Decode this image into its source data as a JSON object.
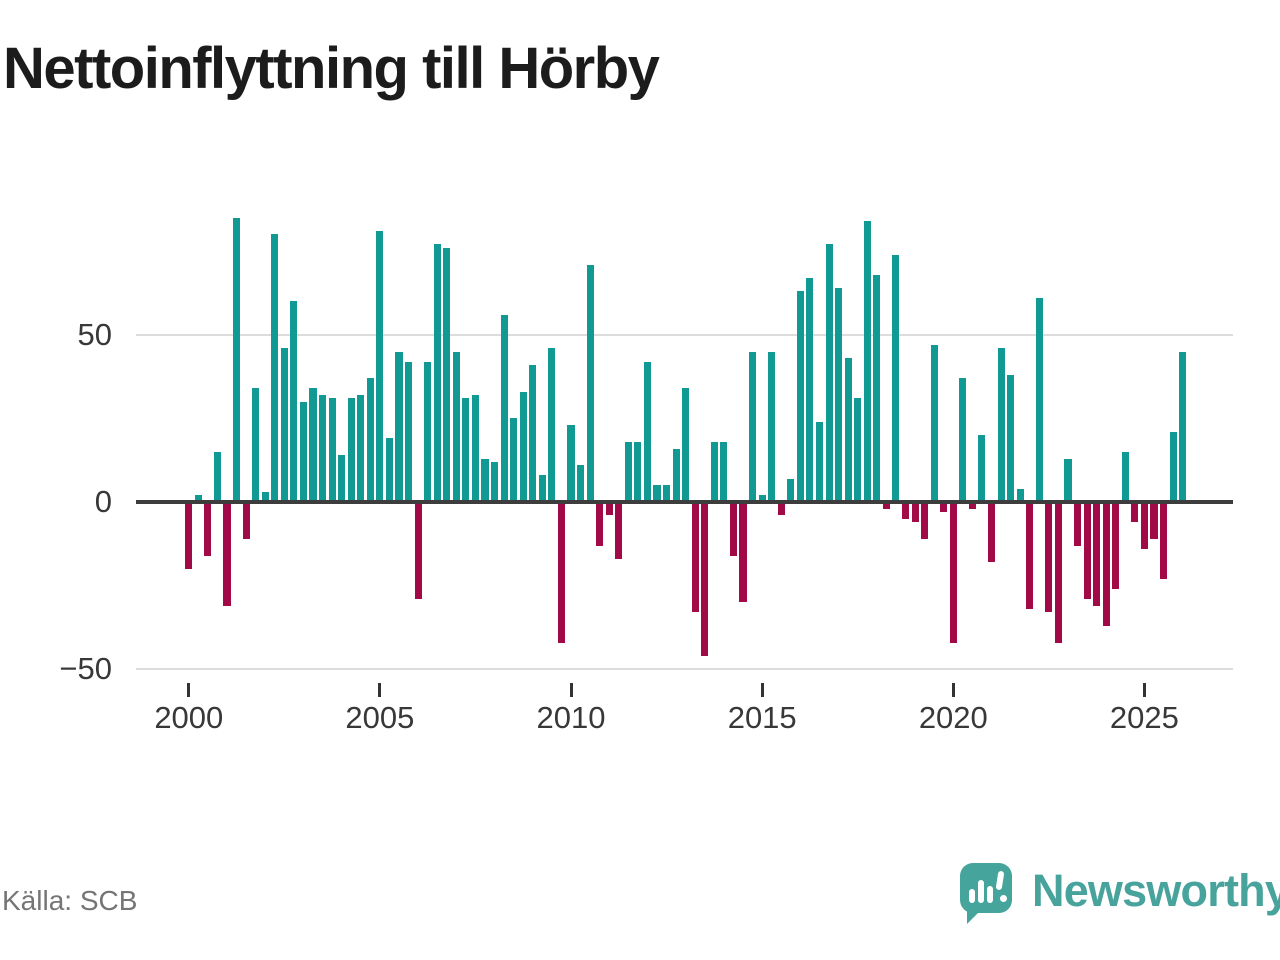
{
  "title": "Nettoinflyttning till Hörby",
  "source": "Källa: SCB",
  "branding": {
    "name": "Newsworthy",
    "logo_color": "#45a49c",
    "wordmark_color": "#47a39b"
  },
  "colors": {
    "positive_bar": "#119a93",
    "negative_bar": "#a10a47",
    "gridline": "#dcdcdc",
    "zero_line": "#3d3d3d",
    "axis_text": "#383838",
    "title_text": "#1c1c1c",
    "source_text": "#757575",
    "background": "#ffffff"
  },
  "chart_data": {
    "type": "bar",
    "title": "Nettoinflyttning till Hörby",
    "frequency": "quarterly",
    "start_period": "2000Q1",
    "end_period": "2026Q1",
    "xlabel": "",
    "ylabel": "",
    "ylim": [
      -55,
      90
    ],
    "grid": "horizontal gridlines at 50 and -50, dark baseline at 0",
    "legend": "none",
    "y_ticks": [
      50,
      0,
      -50
    ],
    "y_tick_labels": [
      "50",
      "0",
      "−50"
    ],
    "x_tick_years": [
      2000,
      2005,
      2010,
      2015,
      2020,
      2025
    ],
    "x_tick_labels": [
      "2000",
      "2005",
      "2010",
      "2015",
      "2020",
      "2025"
    ],
    "values": [
      -20,
      2,
      -16,
      15,
      -31,
      85,
      -11,
      34,
      3,
      80,
      46,
      60,
      30,
      34,
      32,
      31,
      14,
      31,
      32,
      37,
      81,
      19,
      45,
      42,
      -29,
      42,
      77,
      76,
      45,
      31,
      32,
      13,
      12,
      56,
      25,
      33,
      41,
      8,
      46,
      -42,
      23,
      11,
      71,
      -13,
      -4,
      -17,
      18,
      18,
      42,
      5,
      5,
      16,
      34,
      -33,
      -46,
      18,
      18,
      -16,
      -30,
      45,
      2,
      45,
      -4,
      7,
      63,
      67,
      24,
      77,
      64,
      43,
      31,
      84,
      68,
      -2,
      74,
      -5,
      -6,
      -11,
      47,
      -3,
      -42,
      37,
      -2,
      20,
      -18,
      46,
      38,
      4,
      -32,
      61,
      -33,
      -42,
      13,
      -13,
      -29,
      -31,
      -37,
      -26,
      15,
      -6,
      -14,
      -11,
      -23,
      21,
      45
    ]
  }
}
